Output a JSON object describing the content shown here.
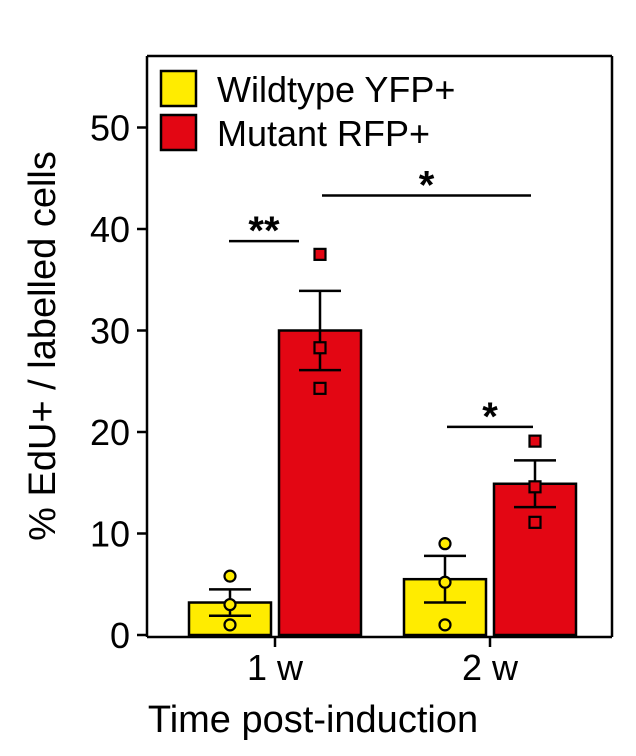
{
  "chart_data": {
    "type": "bar",
    "xlabel": "Time post-induction",
    "ylabel": "% EdU+ / labelled cells",
    "ylim": [
      0,
      56
    ],
    "yticks": [
      "0",
      "10",
      "20",
      "30",
      "40",
      "50"
    ],
    "categories": [
      "1 w",
      "2 w"
    ],
    "legend_position": "top-left",
    "series": [
      {
        "name": "Wildtype YFP+",
        "color": "#ffec00",
        "values": [
          3.2,
          5.5
        ],
        "errors": [
          1.3,
          2.3
        ],
        "points": [
          [
            5.8,
            3.0,
            1.0
          ],
          [
            9.0,
            5.2,
            1.0
          ]
        ],
        "marker": "circle"
      },
      {
        "name": "Mutant RFP+",
        "color": "#e30613",
        "values": [
          30.0,
          14.9
        ],
        "errors": [
          3.9,
          2.3
        ],
        "points": [
          [
            37.5,
            28.3,
            24.3
          ],
          [
            19.1,
            14.6,
            11.1
          ]
        ],
        "marker": "square"
      }
    ],
    "annotations": [
      {
        "label": "**",
        "between": "Wildtype YFP+ 1 w vs Mutant RFP+ 1 w",
        "y": 38.8
      },
      {
        "label": "*",
        "between": "Mutant RFP+ 1 w vs Mutant RFP+ 2 w",
        "y": 43.3
      },
      {
        "label": "*",
        "between": "Wildtype YFP+ 2 w vs Mutant RFP+ 2 w",
        "y": 20.5
      }
    ]
  }
}
